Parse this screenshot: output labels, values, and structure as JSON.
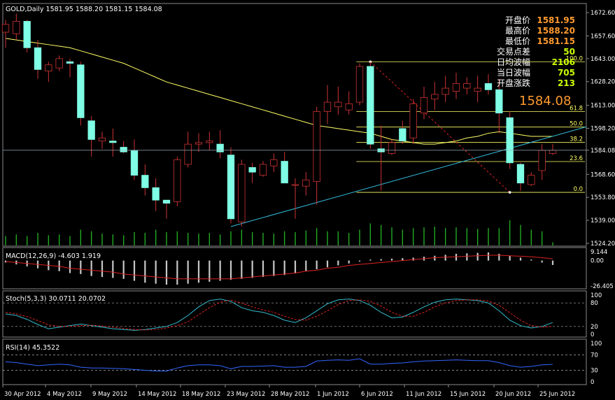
{
  "main_title": "GOLD,Daily  1581.95 1588.20 1581.15 1584.08",
  "info_panel": [
    {
      "label": "开盘价",
      "value": "1581.95",
      "color": "#ff9a2e"
    },
    {
      "label": "最高价",
      "value": "1588.20",
      "color": "#ff9a2e"
    },
    {
      "label": "最低价",
      "value": "1581.15",
      "color": "#ff9a2e"
    },
    {
      "label": "交易点差",
      "value": "50",
      "color": "#ccff00"
    },
    {
      "label": "日均波幅",
      "value": "2106",
      "color": "#ccff00"
    },
    {
      "label": "当日波幅",
      "value": "705",
      "color": "#ccff00"
    },
    {
      "label": "开盘涨跌",
      "value": "213",
      "color": "#ccff00"
    }
  ],
  "last_price": "1584.08",
  "fib_labels": [
    "100.0",
    "61.8",
    "50.0",
    "38.2",
    "23.6",
    "0.0"
  ],
  "date_labels": [
    "30 Apr 2012",
    "4 May 2012",
    "9 May 2012",
    "14 May 2012",
    "18 May 2012",
    "23 May 2012",
    "28 May 2012",
    "1 Jun 2012",
    "6 Jun 2012",
    "11 Jun 2012",
    "15 Jun 2012",
    "20 Jun 2012",
    "25 Jun 2012"
  ],
  "macd_title": "MACD(12,26,9) -4.603 1.919",
  "stoch_title": "Stoch(5,3,3) 30.0711 20.0702",
  "rsi_title": "RSI(14) 45.3522",
  "colors": {
    "bull": "#000000",
    "bear": "#7fffe5",
    "wick": "#cc3333",
    "ma": "#ffff66",
    "fib": "#ffff66",
    "trend": "#33bbdd",
    "volume": "#22aa22",
    "grid": "#8a8a8a",
    "macd_hist": "#c8c8c8",
    "signal": "#dd2222",
    "stoch_main": "#33bbcc",
    "stoch_signal": "#dd2222",
    "rsi": "#3366ff"
  },
  "chart_data": {
    "type": "candlestick",
    "main_yaxis": {
      "ticks": [
        "1672.60",
        "1657.60",
        "1643.00",
        "1628.20",
        "1613.00",
        "1598.20",
        "1584.08",
        "1568.60",
        "1553.80",
        "1539.00",
        "1524.20"
      ]
    },
    "macd_yaxis": {
      "ticks": [
        "9.144",
        "0.00",
        "-26.405"
      ]
    },
    "stoch_yaxis": {
      "ticks": [
        "100",
        "80",
        "20",
        "0"
      ]
    },
    "rsi_yaxis": {
      "ticks": [
        "100",
        "70",
        "30",
        "0"
      ]
    },
    "candles": [
      {
        "o": 1660,
        "h": 1668,
        "l": 1650,
        "c": 1665
      },
      {
        "o": 1659,
        "h": 1672,
        "l": 1655,
        "c": 1667
      },
      {
        "o": 1667,
        "h": 1668,
        "l": 1647,
        "c": 1650
      },
      {
        "o": 1650,
        "h": 1655,
        "l": 1630,
        "c": 1636
      },
      {
        "o": 1635,
        "h": 1641,
        "l": 1628,
        "c": 1639
      },
      {
        "o": 1637,
        "h": 1645,
        "l": 1635,
        "c": 1643
      },
      {
        "o": 1641,
        "h": 1643,
        "l": 1631,
        "c": 1640
      },
      {
        "o": 1639,
        "h": 1641,
        "l": 1600,
        "c": 1605
      },
      {
        "o": 1603,
        "h": 1606,
        "l": 1580,
        "c": 1591
      },
      {
        "o": 1590,
        "h": 1596,
        "l": 1585,
        "c": 1592
      },
      {
        "o": 1590,
        "h": 1598,
        "l": 1580,
        "c": 1589
      },
      {
        "o": 1586,
        "h": 1590,
        "l": 1582,
        "c": 1583
      },
      {
        "o": 1584,
        "h": 1591,
        "l": 1565,
        "c": 1568
      },
      {
        "o": 1568,
        "h": 1575,
        "l": 1555,
        "c": 1560
      },
      {
        "o": 1560,
        "h": 1566,
        "l": 1545,
        "c": 1552
      },
      {
        "o": 1552,
        "h": 1552,
        "l": 1540,
        "c": 1550
      },
      {
        "o": 1551,
        "h": 1580,
        "l": 1548,
        "c": 1578
      },
      {
        "o": 1575,
        "h": 1596,
        "l": 1573,
        "c": 1588
      },
      {
        "o": 1588,
        "h": 1595,
        "l": 1583,
        "c": 1589
      },
      {
        "o": 1589,
        "h": 1596,
        "l": 1584,
        "c": 1590
      },
      {
        "o": 1588,
        "h": 1597,
        "l": 1579,
        "c": 1583
      },
      {
        "o": 1581,
        "h": 1586,
        "l": 1537,
        "c": 1540
      },
      {
        "o": 1538,
        "h": 1578,
        "l": 1535,
        "c": 1575
      },
      {
        "o": 1573,
        "h": 1576,
        "l": 1563,
        "c": 1570
      },
      {
        "o": 1568,
        "h": 1577,
        "l": 1567,
        "c": 1575
      },
      {
        "o": 1574,
        "h": 1582,
        "l": 1570,
        "c": 1578
      },
      {
        "o": 1577,
        "h": 1583,
        "l": 1563,
        "c": 1563
      },
      {
        "o": 1562,
        "h": 1566,
        "l": 1540,
        "c": 1562
      },
      {
        "o": 1561,
        "h": 1570,
        "l": 1555,
        "c": 1565
      },
      {
        "o": 1564,
        "h": 1612,
        "l": 1549,
        "c": 1609
      },
      {
        "o": 1609,
        "h": 1626,
        "l": 1601,
        "c": 1615
      },
      {
        "o": 1612,
        "h": 1625,
        "l": 1607,
        "c": 1615
      },
      {
        "o": 1610,
        "h": 1622,
        "l": 1607,
        "c": 1614
      },
      {
        "o": 1615,
        "h": 1640,
        "l": 1613,
        "c": 1638
      },
      {
        "o": 1638,
        "h": 1641,
        "l": 1585,
        "c": 1588
      },
      {
        "o": 1585,
        "h": 1600,
        "l": 1558,
        "c": 1583
      },
      {
        "o": 1582,
        "h": 1591,
        "l": 1581,
        "c": 1589
      },
      {
        "o": 1598,
        "h": 1603,
        "l": 1588,
        "c": 1590
      },
      {
        "o": 1592,
        "h": 1617,
        "l": 1588,
        "c": 1614
      },
      {
        "o": 1608,
        "h": 1625,
        "l": 1604,
        "c": 1618
      },
      {
        "o": 1617,
        "h": 1628,
        "l": 1610,
        "c": 1620
      },
      {
        "o": 1620,
        "h": 1632,
        "l": 1615,
        "c": 1624
      },
      {
        "o": 1622,
        "h": 1634,
        "l": 1617,
        "c": 1627
      },
      {
        "o": 1624,
        "h": 1631,
        "l": 1620,
        "c": 1627
      },
      {
        "o": 1622,
        "h": 1632,
        "l": 1615,
        "c": 1624
      },
      {
        "o": 1627,
        "h": 1633,
        "l": 1620,
        "c": 1623
      },
      {
        "o": 1623,
        "h": 1630,
        "l": 1595,
        "c": 1608
      },
      {
        "o": 1605,
        "h": 1609,
        "l": 1572,
        "c": 1576
      },
      {
        "o": 1575,
        "h": 1576,
        "l": 1558,
        "c": 1563
      },
      {
        "o": 1562,
        "h": 1570,
        "l": 1561,
        "c": 1568
      },
      {
        "o": 1571,
        "h": 1588,
        "l": 1565,
        "c": 1584
      },
      {
        "o": 1582,
        "h": 1588,
        "l": 1581,
        "c": 1584
      }
    ],
    "ma": [
      1656,
      1655,
      1654,
      1653,
      1652,
      1651,
      1650,
      1648,
      1646,
      1644,
      1642,
      1640,
      1637,
      1634,
      1631,
      1628,
      1626,
      1624,
      1622,
      1620,
      1618,
      1616,
      1614,
      1612,
      1610,
      1608,
      1606,
      1604,
      1602,
      1600,
      1599,
      1598,
      1597,
      1596,
      1595,
      1593,
      1591,
      1590,
      1589,
      1588,
      1588,
      1589,
      1590,
      1592,
      1593,
      1595,
      1596,
      1595,
      1594,
      1593,
      1593,
      1593
    ],
    "volume": [
      12,
      14,
      12,
      16,
      13,
      14,
      12,
      20,
      18,
      15,
      14,
      13,
      17,
      16,
      20,
      17,
      18,
      16,
      15,
      16,
      14,
      18,
      20,
      17,
      16,
      15,
      18,
      17,
      19,
      22,
      18,
      18,
      16,
      20,
      28,
      26,
      23,
      20,
      22,
      23,
      24,
      22,
      23,
      22,
      21,
      22,
      22,
      32,
      26,
      20,
      18,
      4
    ],
    "fibonacci": {
      "high": 1641,
      "low": 1557,
      "levels": [
        100.0,
        61.8,
        50.0,
        38.2,
        23.6,
        0.0
      ]
    },
    "trendline": [
      [
        21,
        1535
      ],
      [
        52,
        1595
      ]
    ],
    "fib_dashed": [
      [
        34,
        1641
      ],
      [
        47,
        1557
      ]
    ],
    "macd": {
      "histogram": [
        -2,
        -4,
        -6,
        -8,
        -10,
        -11,
        -13,
        -14,
        -16,
        -17,
        -18,
        -19,
        -21,
        -23,
        -24,
        -25,
        -25,
        -24,
        -23,
        -22,
        -21,
        -20,
        -19,
        -18,
        -17,
        -16,
        -15,
        -13,
        -11,
        -9,
        -7,
        -5,
        -3,
        -1,
        1,
        1.5,
        2,
        2.5,
        3,
        4,
        5,
        6,
        7,
        7.5,
        8,
        8.5,
        7,
        5,
        3,
        1,
        -2,
        -4.6
      ],
      "signal": [
        -1,
        -2,
        -3,
        -4,
        -5,
        -6,
        -8,
        -9,
        -10,
        -11,
        -12,
        -14,
        -15,
        -16,
        -17,
        -18,
        -19,
        -19,
        -19,
        -19,
        -19,
        -19,
        -18,
        -17,
        -16,
        -15,
        -14,
        -13,
        -11,
        -10,
        -8,
        -7,
        -5,
        -4,
        -3,
        -2,
        -1,
        0,
        1,
        2,
        3,
        3.5,
        4,
        4.5,
        5,
        5.5,
        5.5,
        5,
        4.5,
        4,
        3,
        1.9
      ]
    },
    "stochastic": {
      "main": [
        52,
        48,
        38,
        25,
        14,
        18,
        22,
        26,
        22,
        18,
        14,
        12,
        10,
        12,
        16,
        20,
        30,
        48,
        70,
        86,
        90,
        84,
        68,
        60,
        56,
        48,
        36,
        30,
        42,
        60,
        78,
        88,
        90,
        86,
        74,
        56,
        42,
        44,
        56,
        70,
        82,
        88,
        90,
        88,
        86,
        80,
        60,
        36,
        22,
        16,
        20,
        30
      ],
      "signal": [
        56,
        52,
        45,
        35,
        24,
        20,
        20,
        22,
        23,
        21,
        18,
        15,
        12,
        11,
        12,
        16,
        22,
        32,
        50,
        68,
        82,
        87,
        80,
        70,
        62,
        56,
        46,
        38,
        36,
        46,
        60,
        76,
        86,
        88,
        84,
        72,
        56,
        46,
        46,
        56,
        70,
        80,
        86,
        88,
        88,
        85,
        74,
        55,
        36,
        22,
        18,
        20
      ]
    },
    "rsi": [
      52,
      50,
      46,
      42,
      44,
      46,
      44,
      38,
      36,
      36,
      35,
      34,
      32,
      30,
      28,
      28,
      36,
      42,
      44,
      44,
      42,
      34,
      40,
      40,
      41,
      42,
      38,
      38,
      40,
      54,
      56,
      57,
      56,
      60,
      46,
      46,
      48,
      49,
      52,
      54,
      55,
      56,
      57,
      56,
      55,
      55,
      50,
      42,
      38,
      40,
      44,
      45.35
    ]
  }
}
